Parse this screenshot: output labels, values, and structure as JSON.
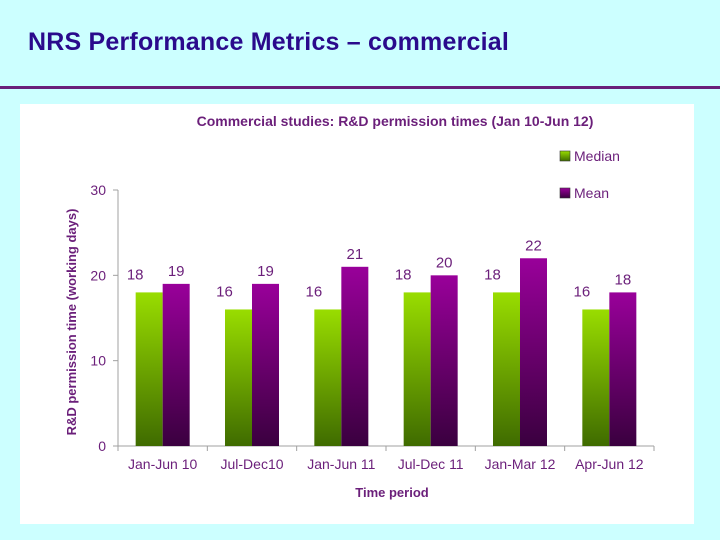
{
  "slide": {
    "title": "NRS Performance Metrics – commercial"
  },
  "chart_data": {
    "type": "bar",
    "title": "Commercial studies: R&D permission times (Jan 10-Jun 12)",
    "xlabel": "Time period",
    "ylabel": "R&D permission time  (working days)",
    "ylim": [
      0,
      30
    ],
    "yticks": [
      0,
      10,
      20,
      30
    ],
    "grid": false,
    "legend": "top-right",
    "categories": [
      "Jan-Jun 10",
      "Jul-Dec10",
      "Jan-Jun 11",
      "Jul-Dec 11",
      "Jan-Mar 12",
      "Apr-Jun 12"
    ],
    "series": [
      {
        "name": "Median",
        "values": [
          18,
          16,
          16,
          18,
          18,
          16
        ],
        "color_top": "#99dd00",
        "color_bottom": "#3f6b00"
      },
      {
        "name": "Mean",
        "values": [
          19,
          19,
          21,
          20,
          22,
          18
        ],
        "color_top": "#99009a",
        "color_bottom": "#3a003f"
      }
    ]
  }
}
